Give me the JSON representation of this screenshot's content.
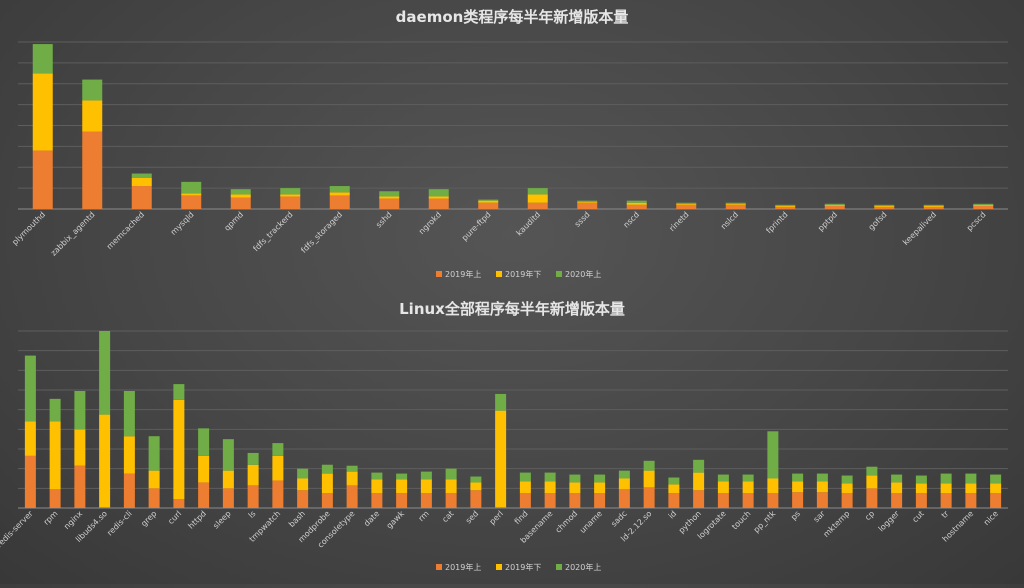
{
  "colors": {
    "s2019a": "#ED7D31",
    "s2019b": "#FFC000",
    "s2020a": "#70AD47"
  },
  "chart_data": [
    {
      "type": "bar",
      "stacked": true,
      "title": "daemon类程序每半年新增版本量",
      "legend_position": "bottom",
      "grid": true,
      "ylim": [
        0,
        8
      ],
      "categories": [
        "plymouthd",
        "zabbix_agentd",
        "memcached",
        "mysqld",
        "qpmd",
        "fdfs_trackerd",
        "fdfs_storaged",
        "sshd",
        "ngrokd",
        "pure-ftpd",
        "kauditd",
        "sssd",
        "nscd",
        "rinetd",
        "nslcd",
        "fprintd",
        "pptpd",
        "gofsd",
        "keepalived",
        "pcscd"
      ],
      "series": [
        {
          "name": "2019年上",
          "values": [
            2.8,
            3.7,
            1.1,
            0.65,
            0.55,
            0.6,
            0.65,
            0.5,
            0.5,
            0.3,
            0.3,
            0.3,
            0.2,
            0.2,
            0.2,
            0.1,
            0.15,
            0.1,
            0.1,
            0.15
          ]
        },
        {
          "name": "2019年下",
          "values": [
            3.7,
            1.5,
            0.4,
            0.1,
            0.15,
            0.1,
            0.15,
            0.1,
            0.1,
            0.1,
            0.4,
            0.05,
            0.1,
            0.05,
            0.05,
            0.05,
            0.05,
            0.05,
            0.05,
            0.05
          ]
        },
        {
          "name": "2020年上",
          "values": [
            1.4,
            1.0,
            0.2,
            0.55,
            0.25,
            0.3,
            0.3,
            0.25,
            0.35,
            0.05,
            0.3,
            0.05,
            0.1,
            0.05,
            0.05,
            0.05,
            0.05,
            0.05,
            0.05,
            0.05
          ]
        }
      ]
    },
    {
      "type": "bar",
      "stacked": true,
      "title": "Linux全部程序每半年新增版本量",
      "legend_position": "bottom",
      "grid": true,
      "ylim": [
        0,
        18
      ],
      "categories": [
        "redis-server",
        "rpm",
        "nginx",
        "libuds4.so",
        "redis-cli",
        "grep",
        "curl",
        "httpd",
        "sleep",
        "ls",
        "tmpwatch",
        "bash",
        "modprobe",
        "consoletype",
        "date",
        "gawk",
        "rm",
        "cat",
        "sed",
        "perl",
        "find",
        "basename",
        "chmod",
        "uname",
        "sadc",
        "ld-2.12.so",
        "id",
        "python",
        "logrotate",
        "touch",
        "pp_ntk",
        "ps",
        "sar",
        "mktemp",
        "cp",
        "logger",
        "cut",
        "tr",
        "hostname",
        "nice"
      ],
      "series": [
        {
          "name": "2019年上",
          "values": [
            5.3,
            1.9,
            4.3,
            0.1,
            3.5,
            2.0,
            0.9,
            2.6,
            2.0,
            2.3,
            2.8,
            1.8,
            1.5,
            2.3,
            1.5,
            1.5,
            1.5,
            1.5,
            1.8,
            0.1,
            1.5,
            1.5,
            1.5,
            1.5,
            1.9,
            2.1,
            1.5,
            1.8,
            1.5,
            1.5,
            1.5,
            1.6,
            1.6,
            1.5,
            2.0,
            1.5,
            1.5,
            1.5,
            1.5,
            1.5
          ]
        },
        {
          "name": "2019年下",
          "values": [
            3.5,
            6.9,
            3.7,
            9.4,
            3.8,
            1.8,
            10.1,
            2.7,
            1.8,
            2.1,
            2.5,
            1.2,
            2.0,
            1.4,
            1.4,
            1.4,
            1.4,
            1.4,
            0.8,
            9.8,
            1.2,
            1.2,
            1.1,
            1.1,
            1.1,
            1.7,
            0.9,
            1.8,
            1.2,
            1.2,
            1.5,
            1.1,
            1.1,
            1.0,
            1.3,
            1.1,
            1.0,
            1.0,
            1.0,
            1.0
          ]
        },
        {
          "name": "2020年上",
          "values": [
            6.7,
            2.3,
            3.9,
            8.5,
            4.6,
            3.5,
            1.6,
            2.8,
            3.2,
            1.2,
            1.3,
            1.0,
            0.9,
            0.6,
            0.7,
            0.6,
            0.8,
            1.1,
            0.6,
            1.7,
            0.9,
            0.9,
            0.8,
            0.8,
            0.8,
            1.0,
            0.7,
            1.3,
            0.7,
            0.7,
            4.8,
            0.8,
            0.8,
            0.8,
            0.9,
            0.8,
            0.8,
            1.0,
            1.0,
            0.9
          ]
        }
      ]
    }
  ]
}
